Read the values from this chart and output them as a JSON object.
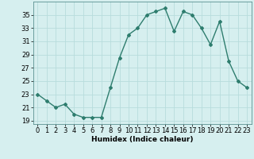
{
  "x": [
    0,
    1,
    2,
    3,
    4,
    5,
    6,
    7,
    8,
    9,
    10,
    11,
    12,
    13,
    14,
    15,
    16,
    17,
    18,
    19,
    20,
    21,
    22,
    23
  ],
  "y": [
    23,
    22,
    21,
    21.5,
    20,
    19.5,
    19.5,
    19.5,
    24,
    28.5,
    32,
    33,
    35,
    35.5,
    36,
    32.5,
    35.5,
    35,
    33,
    30.5,
    34,
    28,
    25,
    24
  ],
  "xlabel": "Humidex (Indice chaleur)",
  "xlim": [
    -0.5,
    23.5
  ],
  "ylim": [
    18.5,
    37
  ],
  "yticks": [
    19,
    21,
    23,
    25,
    27,
    29,
    31,
    33,
    35
  ],
  "xticks": [
    0,
    1,
    2,
    3,
    4,
    5,
    6,
    7,
    8,
    9,
    10,
    11,
    12,
    13,
    14,
    15,
    16,
    17,
    18,
    19,
    20,
    21,
    22,
    23
  ],
  "line_color": "#2e7d6e",
  "marker": "D",
  "markersize": 2.0,
  "linewidth": 1.0,
  "bg_color": "#d6efef",
  "grid_color": "#b8dcdc",
  "label_fontsize": 6.5,
  "tick_fontsize": 6
}
